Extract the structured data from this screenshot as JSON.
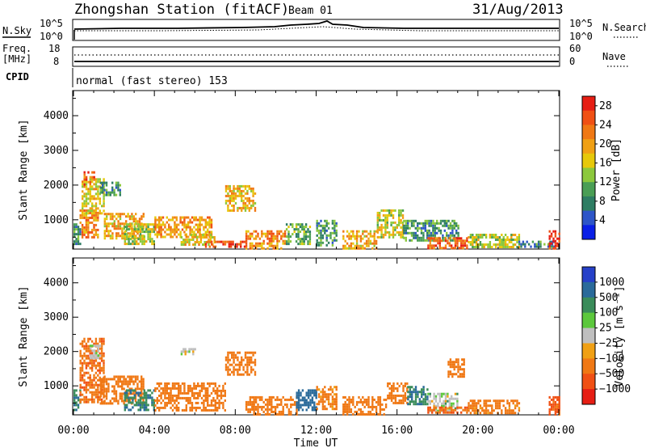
{
  "header": {
    "station": "Zhongshan Station (fitACF)",
    "beam": "Beam 01",
    "date": "31/Aug/2013"
  },
  "top_panels": {
    "nsky_label": "N.Sky",
    "nsearch_label": "N.Search",
    "noise_ticks": [
      "10^5",
      "10^0"
    ],
    "freq_label_1": "Freq.",
    "freq_label_2": "[MHz]",
    "freq_ticks": [
      "18",
      "8"
    ],
    "nave_label": "Nave",
    "nave_ticks": [
      "60",
      "0"
    ],
    "cpid_label": "CPID",
    "cpid_text": "normal (fast stereo) 153"
  },
  "colors": {
    "power_scale": [
      "#0a1fe6",
      "#2d55c8",
      "#2e7d63",
      "#4a9e55",
      "#8cc83c",
      "#e6c80a",
      "#f0a014",
      "#f07814",
      "#f05014",
      "#e61e14"
    ],
    "velocity_scale": [
      "#2640c8",
      "#2a6a9a",
      "#3a8c5a",
      "#5cc83c",
      "#bfbfbf",
      "#f0a014",
      "#f07814",
      "#f05014",
      "#e61e14"
    ]
  },
  "chart_data": [
    {
      "type": "heatmap",
      "title": "",
      "ylabel": "Slant Range [km]",
      "yticks": [
        "1000",
        "2000",
        "3000",
        "4000"
      ],
      "ylim": [
        180,
        4700
      ],
      "xlim": [
        0,
        24
      ],
      "xticks": [
        "00:00",
        "04:00",
        "08:00",
        "12:00",
        "16:00",
        "20:00",
        "00:00"
      ],
      "colorbar": {
        "label": "Power [dB]",
        "ticks": [
          "4",
          "8",
          "12",
          "16",
          "20",
          "24",
          "28"
        ],
        "range": [
          0,
          30
        ]
      },
      "echo_regions": [
        {
          "x": [
            0.0,
            0.3
          ],
          "y": [
            300,
            900
          ],
          "value": 9
        },
        {
          "x": [
            0.3,
            1.2
          ],
          "y": [
            500,
            1300
          ],
          "value": 22
        },
        {
          "x": [
            0.4,
            1.5
          ],
          "y": [
            1200,
            2200
          ],
          "value": 17
        },
        {
          "x": [
            0.5,
            1.0
          ],
          "y": [
            2000,
            2400
          ],
          "value": 25
        },
        {
          "x": [
            1.3,
            2.3
          ],
          "y": [
            1700,
            2100
          ],
          "value": 9
        },
        {
          "x": [
            1.5,
            3.5
          ],
          "y": [
            500,
            1200
          ],
          "value": 19
        },
        {
          "x": [
            2.5,
            4.0
          ],
          "y": [
            300,
            900
          ],
          "value": 15
        },
        {
          "x": [
            4.0,
            6.8
          ],
          "y": [
            500,
            1100
          ],
          "value": 20
        },
        {
          "x": [
            5.3,
            7.0
          ],
          "y": [
            300,
            600
          ],
          "value": 17
        },
        {
          "x": [
            6.5,
            8.5
          ],
          "y": [
            200,
            400
          ],
          "value": 26
        },
        {
          "x": [
            7.5,
            9.0
          ],
          "y": [
            1300,
            2000
          ],
          "value": 18
        },
        {
          "x": [
            8.5,
            10.5
          ],
          "y": [
            200,
            700
          ],
          "value": 22
        },
        {
          "x": [
            10.5,
            11.7
          ],
          "y": [
            300,
            900
          ],
          "value": 11
        },
        {
          "x": [
            12.0,
            13.0
          ],
          "y": [
            300,
            1000
          ],
          "value": 10
        },
        {
          "x": [
            13.3,
            15.0
          ],
          "y": [
            200,
            700
          ],
          "value": 19
        },
        {
          "x": [
            15.0,
            16.3
          ],
          "y": [
            500,
            1300
          ],
          "value": 16
        },
        {
          "x": [
            16.3,
            19.0
          ],
          "y": [
            400,
            1000
          ],
          "value": 9
        },
        {
          "x": [
            17.5,
            19.5
          ],
          "y": [
            200,
            500
          ],
          "value": 25
        },
        {
          "x": [
            19.5,
            22.0
          ],
          "y": [
            200,
            600
          ],
          "value": 15
        },
        {
          "x": [
            22.0,
            23.8
          ],
          "y": [
            200,
            400
          ],
          "value": 8
        },
        {
          "x": [
            23.5,
            24.0
          ],
          "y": [
            200,
            700
          ],
          "value": 28
        }
      ]
    },
    {
      "type": "heatmap",
      "title": "",
      "ylabel": "Slant Range [km]",
      "yticks": [
        "1000",
        "2000",
        "3000",
        "4000"
      ],
      "ylim": [
        180,
        4700
      ],
      "xlim": [
        0,
        24
      ],
      "xticks": [
        "00:00",
        "04:00",
        "08:00",
        "12:00",
        "16:00",
        "20:00",
        "00:00"
      ],
      "xlabel": "Time UT",
      "colorbar": {
        "label": "Velocity [m s⁻¹]",
        "ticks": [
          "1000",
          "500",
          "100",
          "25",
          "−25",
          "−100",
          "−500",
          "−1000"
        ],
        "range": [
          -1200,
          1200
        ]
      },
      "echo_regions": [
        {
          "x": [
            0.0,
            0.3
          ],
          "y": [
            300,
            900
          ],
          "value": 90
        },
        {
          "x": [
            0.3,
            1.5
          ],
          "y": [
            500,
            2400
          ],
          "value": -400
        },
        {
          "x": [
            0.8,
            1.3
          ],
          "y": [
            1800,
            2200
          ],
          "value": 0
        },
        {
          "x": [
            1.3,
            3.5
          ],
          "y": [
            500,
            1300
          ],
          "value": -300
        },
        {
          "x": [
            2.5,
            4.0
          ],
          "y": [
            300,
            900
          ],
          "value": 90
        },
        {
          "x": [
            4.0,
            7.5
          ],
          "y": [
            300,
            1100
          ],
          "value": -300
        },
        {
          "x": [
            5.3,
            6.0
          ],
          "y": [
            1900,
            2100
          ],
          "value": 0
        },
        {
          "x": [
            7.5,
            9.0
          ],
          "y": [
            1300,
            2000
          ],
          "value": -300
        },
        {
          "x": [
            8.5,
            11.0
          ],
          "y": [
            200,
            700
          ],
          "value": -350
        },
        {
          "x": [
            11.0,
            12.0
          ],
          "y": [
            300,
            900
          ],
          "value": 300
        },
        {
          "x": [
            12.0,
            13.0
          ],
          "y": [
            300,
            1000
          ],
          "value": -150
        },
        {
          "x": [
            13.3,
            15.5
          ],
          "y": [
            200,
            700
          ],
          "value": -300
        },
        {
          "x": [
            15.5,
            16.5
          ],
          "y": [
            500,
            1100
          ],
          "value": -250
        },
        {
          "x": [
            16.5,
            17.5
          ],
          "y": [
            500,
            1000
          ],
          "value": 90
        },
        {
          "x": [
            17.5,
            19.0
          ],
          "y": [
            300,
            800
          ],
          "value": 0
        },
        {
          "x": [
            17.5,
            19.5
          ],
          "y": [
            200,
            400
          ],
          "value": -500
        },
        {
          "x": [
            18.5,
            19.3
          ],
          "y": [
            1300,
            1800
          ],
          "value": -200
        },
        {
          "x": [
            19.5,
            22.0
          ],
          "y": [
            200,
            600
          ],
          "value": -150
        },
        {
          "x": [
            23.5,
            24.0
          ],
          "y": [
            200,
            700
          ],
          "value": -600
        }
      ]
    }
  ]
}
